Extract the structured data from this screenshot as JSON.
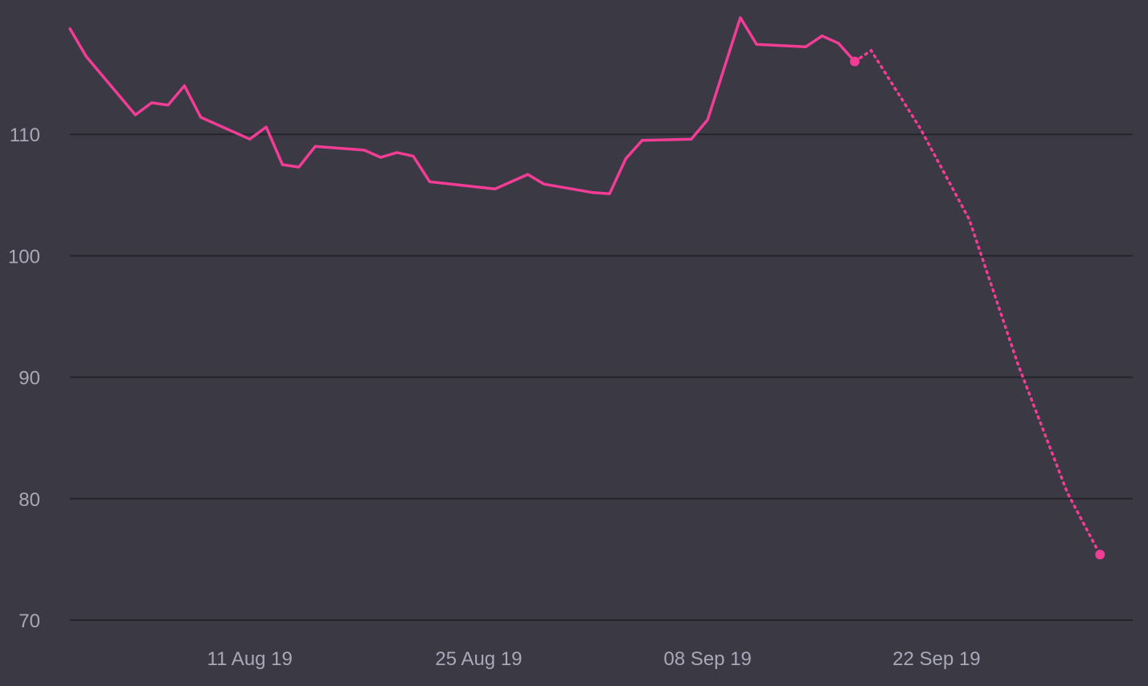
{
  "chart_data": {
    "type": "line",
    "title": "",
    "xlabel": "",
    "ylabel": "",
    "ylim": [
      70,
      120
    ],
    "xlim": [
      "2019-07-31",
      "2019-10-04"
    ],
    "grid": true,
    "legend": "none",
    "y_ticks": [
      70,
      80,
      90,
      100,
      110
    ],
    "y_tick_labels": [
      "70",
      "80",
      "90",
      "100",
      "110"
    ],
    "x_ticks": [
      "2019-08-11",
      "2019-08-25",
      "2019-09-08",
      "2019-09-22"
    ],
    "x_tick_labels": [
      "11 Aug 19",
      "25 Aug 19",
      "08 Sep 19",
      "22 Sep 19"
    ],
    "colors": {
      "background": "#3a3944",
      "grid": "#25242c",
      "axis_text": "#a9a8b8",
      "series": "#f23d96"
    },
    "series": [
      {
        "style": "solid",
        "points": [
          {
            "x": "2019-07-31",
            "y": 118.7
          },
          {
            "x": "2019-08-01",
            "y": 116.4
          },
          {
            "x": "2019-08-04",
            "y": 111.6
          },
          {
            "x": "2019-08-05",
            "y": 112.6
          },
          {
            "x": "2019-08-06",
            "y": 112.4
          },
          {
            "x": "2019-08-07",
            "y": 114.0
          },
          {
            "x": "2019-08-08",
            "y": 111.4
          },
          {
            "x": "2019-08-11",
            "y": 109.6
          },
          {
            "x": "2019-08-12",
            "y": 110.6
          },
          {
            "x": "2019-08-13",
            "y": 107.5
          },
          {
            "x": "2019-08-14",
            "y": 107.3
          },
          {
            "x": "2019-08-15",
            "y": 109.0
          },
          {
            "x": "2019-08-18",
            "y": 108.7
          },
          {
            "x": "2019-08-19",
            "y": 108.1
          },
          {
            "x": "2019-08-20",
            "y": 108.5
          },
          {
            "x": "2019-08-21",
            "y": 108.2
          },
          {
            "x": "2019-08-22",
            "y": 106.1
          },
          {
            "x": "2019-08-26",
            "y": 105.5
          },
          {
            "x": "2019-08-28",
            "y": 106.7
          },
          {
            "x": "2019-08-29",
            "y": 105.9
          },
          {
            "x": "2019-09-01",
            "y": 105.2
          },
          {
            "x": "2019-09-02",
            "y": 105.1
          },
          {
            "x": "2019-09-03",
            "y": 108.0
          },
          {
            "x": "2019-09-04",
            "y": 109.5
          },
          {
            "x": "2019-09-07",
            "y": 109.6
          },
          {
            "x": "2019-09-08",
            "y": 111.2
          },
          {
            "x": "2019-09-10",
            "y": 119.6
          },
          {
            "x": "2019-09-11",
            "y": 117.4
          },
          {
            "x": "2019-09-14",
            "y": 117.2
          },
          {
            "x": "2019-09-15",
            "y": 118.1
          },
          {
            "x": "2019-09-16",
            "y": 117.5
          },
          {
            "x": "2019-09-17",
            "y": 116.0
          }
        ]
      },
      {
        "style": "dotted",
        "points": [
          {
            "x": "2019-09-17",
            "y": 116.0
          },
          {
            "x": "2019-09-18",
            "y": 116.9
          },
          {
            "x": "2019-09-21",
            "y": 110.5
          },
          {
            "x": "2019-09-24",
            "y": 103.0
          },
          {
            "x": "2019-09-27",
            "y": 91.0
          },
          {
            "x": "2019-09-30",
            "y": 80.5
          },
          {
            "x": "2019-10-02",
            "y": 75.4
          }
        ]
      }
    ]
  }
}
